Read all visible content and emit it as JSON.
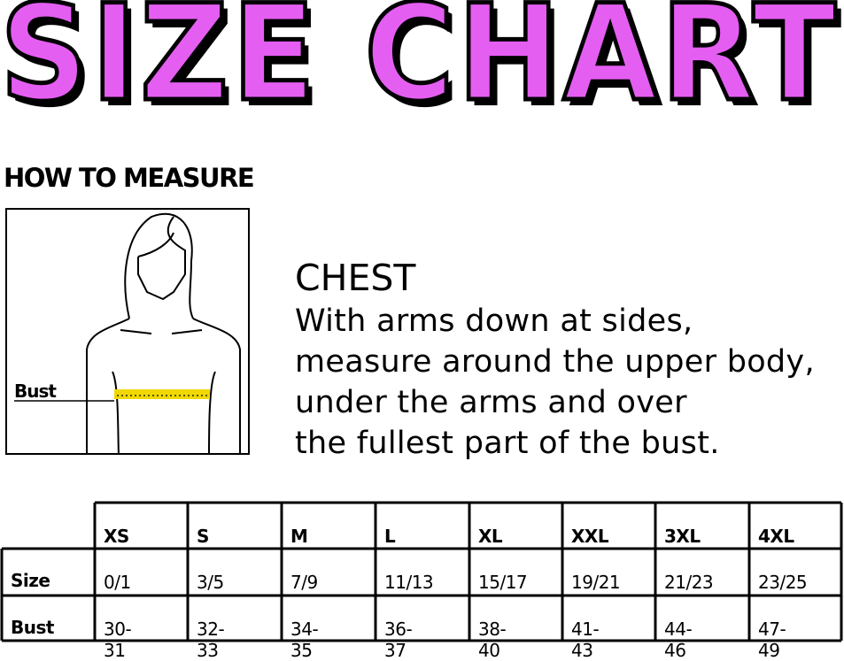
{
  "title": "SIZE CHART",
  "how_to_measure": "HOW TO MEASURE",
  "figure_label": "Bust",
  "chest": {
    "heading": "CHEST",
    "lines": [
      "With arms down at sides,",
      "measure around the upper body,",
      "under the arms and over",
      "the fullest part of the bust."
    ]
  },
  "colors": {
    "title_fill": "#e55ef2",
    "tape": "#f0d800"
  },
  "table": {
    "columns": [
      "XS",
      "S",
      "M",
      "L",
      "XL",
      "XXL",
      "3XL",
      "4XL"
    ],
    "rows": [
      {
        "label": "Size",
        "values": [
          "0/1",
          "3/5",
          "7/9",
          "11/13",
          "15/17",
          "19/21",
          "21/23",
          "23/25"
        ]
      },
      {
        "label": "Bust",
        "values": [
          "30-31",
          "32-33",
          "34-35",
          "36-37",
          "38-40",
          "41-43",
          "44-46",
          "47-49"
        ]
      }
    ]
  }
}
